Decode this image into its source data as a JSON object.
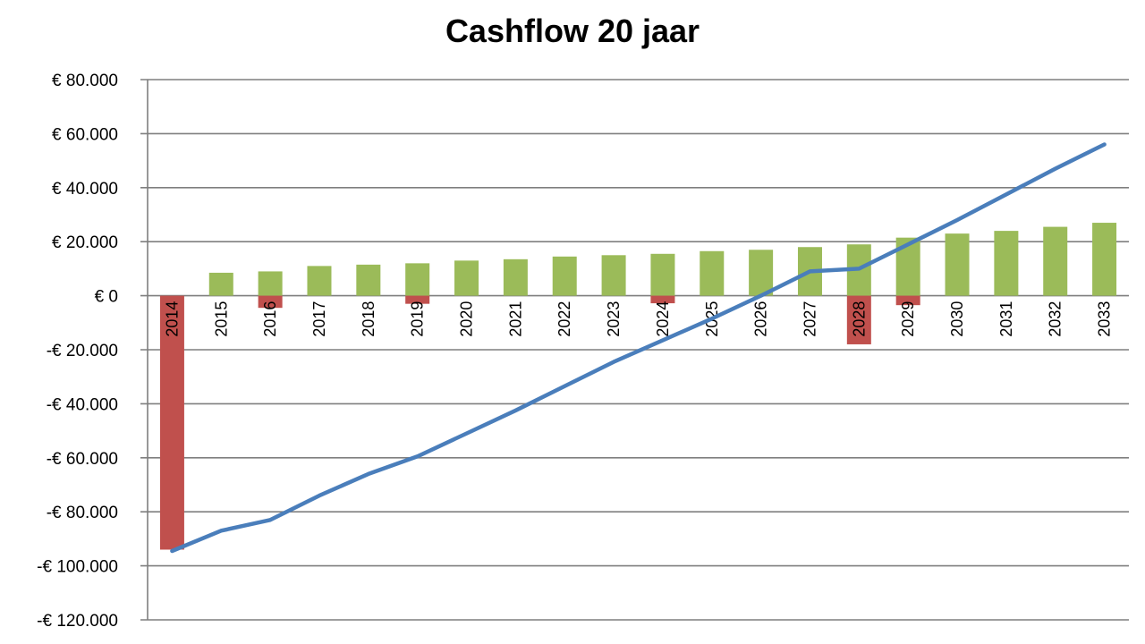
{
  "chart_data": {
    "type": "bar",
    "title": "Cashflow 20 jaar",
    "categories": [
      "2014",
      "2015",
      "2016",
      "2017",
      "2018",
      "2019",
      "2020",
      "2021",
      "2022",
      "2023",
      "2024",
      "2025",
      "2026",
      "2027",
      "2028",
      "2029",
      "2030",
      "2031",
      "2032",
      "2033"
    ],
    "series": [
      {
        "type": "bar",
        "positive_color": "#9BBB59",
        "negative_color": "#C0504D",
        "bars": [
          [
            -94000
          ],
          [
            8500
          ],
          [
            9000,
            -4500
          ],
          [
            11000
          ],
          [
            11500
          ],
          [
            12000,
            -3000
          ],
          [
            13000
          ],
          [
            13500
          ],
          [
            14500
          ],
          [
            15000
          ],
          [
            15500,
            -2800
          ],
          [
            16500
          ],
          [
            17000
          ],
          [
            18000
          ],
          [
            19000,
            -18000
          ],
          [
            21500,
            -3500
          ],
          [
            23000
          ],
          [
            24000
          ],
          [
            25500
          ],
          [
            27000
          ]
        ]
      },
      {
        "type": "line",
        "color": "#4A7EBB",
        "values": [
          -94500,
          -87000,
          -83000,
          -74000,
          -66000,
          -59500,
          -51000,
          -42500,
          -33500,
          -24500,
          -16500,
          -8500,
          0,
          9000,
          10000,
          19000,
          28000,
          37500,
          47000,
          56000
        ]
      }
    ],
    "ylim": [
      -120000,
      80000
    ],
    "yticks": [
      80000,
      60000,
      40000,
      20000,
      0,
      -20000,
      -40000,
      -60000,
      -80000,
      -100000,
      -120000
    ],
    "ytick_labels": [
      "€ 80.000",
      "€ 60.000",
      "€ 40.000",
      "€ 20.000",
      "€ 0",
      "-€ 20.000",
      "-€ 40.000",
      "-€ 60.000",
      "-€ 80.000",
      "-€ 100.000",
      "-€ 120.000"
    ],
    "grid": true,
    "gridline_color": "#7F7F7F"
  }
}
